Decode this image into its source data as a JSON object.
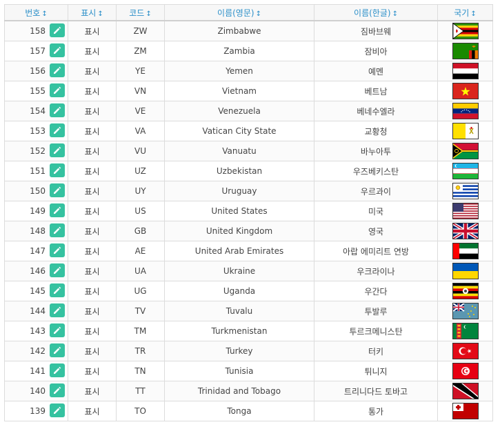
{
  "table": {
    "headers": {
      "num": "번호",
      "show": "표시",
      "code": "코드",
      "name_en": "이름(영문)",
      "name_ko": "이름(한글)",
      "flag": "국기"
    },
    "sort_glyph": "↕",
    "rows": [
      {
        "num": "158",
        "show": "표시",
        "code": "ZW",
        "en": "Zimbabwe",
        "ko": "짐바브웨",
        "flag_icon": "zimbabwe-flag-icon"
      },
      {
        "num": "157",
        "show": "표시",
        "code": "ZM",
        "en": "Zambia",
        "ko": "잠비아",
        "flag_icon": "zambia-flag-icon"
      },
      {
        "num": "156",
        "show": "표시",
        "code": "YE",
        "en": "Yemen",
        "ko": "예멘",
        "flag_icon": "yemen-flag-icon"
      },
      {
        "num": "155",
        "show": "표시",
        "code": "VN",
        "en": "Vietnam",
        "ko": "베트남",
        "flag_icon": "vietnam-flag-icon"
      },
      {
        "num": "154",
        "show": "표시",
        "code": "VE",
        "en": "Venezuela",
        "ko": "베네수엘라",
        "flag_icon": "venezuela-flag-icon"
      },
      {
        "num": "153",
        "show": "표시",
        "code": "VA",
        "en": "Vatican City State",
        "ko": "교황청",
        "flag_icon": "vatican-flag-icon"
      },
      {
        "num": "152",
        "show": "표시",
        "code": "VU",
        "en": "Vanuatu",
        "ko": "바누아투",
        "flag_icon": "vanuatu-flag-icon"
      },
      {
        "num": "151",
        "show": "표시",
        "code": "UZ",
        "en": "Uzbekistan",
        "ko": "우즈베키스탄",
        "flag_icon": "uzbekistan-flag-icon"
      },
      {
        "num": "150",
        "show": "표시",
        "code": "UY",
        "en": "Uruguay",
        "ko": "우르과이",
        "flag_icon": "uruguay-flag-icon"
      },
      {
        "num": "149",
        "show": "표시",
        "code": "US",
        "en": "United States",
        "ko": "미국",
        "flag_icon": "usa-flag-icon"
      },
      {
        "num": "148",
        "show": "표시",
        "code": "GB",
        "en": "United Kingdom",
        "ko": "영국",
        "flag_icon": "uk-flag-icon"
      },
      {
        "num": "147",
        "show": "표시",
        "code": "AE",
        "en": "United Arab Emirates",
        "ko": "아랍 에미리트 연방",
        "flag_icon": "uae-flag-icon"
      },
      {
        "num": "146",
        "show": "표시",
        "code": "UA",
        "en": "Ukraine",
        "ko": "우크라이나",
        "flag_icon": "ukraine-flag-icon"
      },
      {
        "num": "145",
        "show": "표시",
        "code": "UG",
        "en": "Uganda",
        "ko": "우간다",
        "flag_icon": "uganda-flag-icon"
      },
      {
        "num": "144",
        "show": "표시",
        "code": "TV",
        "en": "Tuvalu",
        "ko": "투발루",
        "flag_icon": "tuvalu-flag-icon"
      },
      {
        "num": "143",
        "show": "표시",
        "code": "TM",
        "en": "Turkmenistan",
        "ko": "투르크메니스탄",
        "flag_icon": "turkmenistan-flag-icon"
      },
      {
        "num": "142",
        "show": "표시",
        "code": "TR",
        "en": "Turkey",
        "ko": "터키",
        "flag_icon": "turkey-flag-icon"
      },
      {
        "num": "141",
        "show": "표시",
        "code": "TN",
        "en": "Tunisia",
        "ko": "튀니지",
        "flag_icon": "tunisia-flag-icon"
      },
      {
        "num": "140",
        "show": "표시",
        "code": "TT",
        "en": "Trinidad and Tobago",
        "ko": "트리니다드 토바고",
        "flag_icon": "trinidad-flag-icon"
      },
      {
        "num": "139",
        "show": "표시",
        "code": "TO",
        "en": "Tonga",
        "ko": "통가",
        "flag_icon": "tonga-flag-icon"
      }
    ]
  },
  "colors": {
    "header_text": "#2b8fc9",
    "edit_button": "#35c2a0"
  }
}
